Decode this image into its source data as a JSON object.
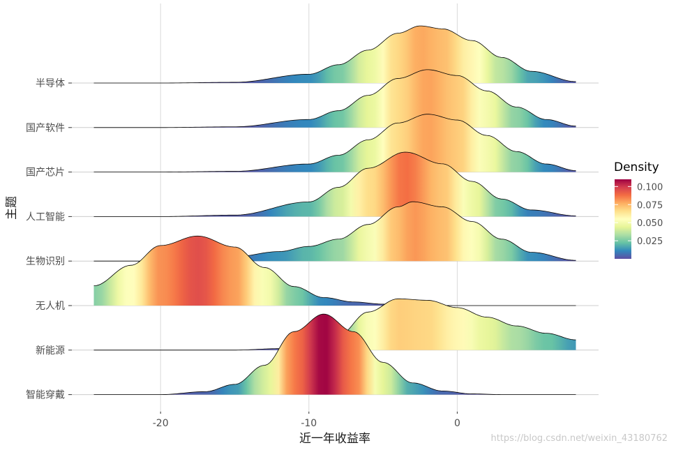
{
  "chart_data": {
    "type": "ridgeline",
    "xlabel": "近一年收益率",
    "ylabel": "主题",
    "xlim": [
      -24.5,
      8
    ],
    "x_ticks": [
      -20,
      -10,
      0
    ],
    "x_tick_labels": [
      "-20",
      "-10",
      "0"
    ],
    "grid": true,
    "categories": [
      "半导体",
      "国产软件",
      "国产芯片",
      "人工智能",
      "生物识别",
      "无人机",
      "新能源",
      "智能穿戴"
    ],
    "series": [
      {
        "name": "半导体",
        "peak_x": -2.5,
        "peak_density": 0.078,
        "x": [
          -24.5,
          -20,
          -15,
          -10,
          -8,
          -6,
          -4,
          -2.5,
          -1,
          1,
          3,
          5,
          8
        ],
        "density": [
          0.0,
          0.0,
          0.001,
          0.012,
          0.025,
          0.045,
          0.068,
          0.078,
          0.074,
          0.058,
          0.035,
          0.016,
          0.002
        ]
      },
      {
        "name": "国产软件",
        "peak_x": -2.0,
        "peak_density": 0.079,
        "x": [
          -24.5,
          -20,
          -15,
          -10,
          -8,
          -6,
          -4,
          -2,
          0,
          2,
          4,
          6,
          8
        ],
        "density": [
          0.0,
          0.0,
          0.001,
          0.011,
          0.023,
          0.044,
          0.067,
          0.079,
          0.071,
          0.05,
          0.028,
          0.011,
          0.002
        ]
      },
      {
        "name": "国产芯片",
        "peak_x": -2.0,
        "peak_density": 0.079,
        "x": [
          -24.5,
          -20,
          -15,
          -10,
          -8,
          -6,
          -4,
          -2,
          0,
          2,
          4,
          6,
          8
        ],
        "density": [
          0.0,
          0.0,
          0.001,
          0.011,
          0.023,
          0.044,
          0.067,
          0.079,
          0.071,
          0.05,
          0.028,
          0.011,
          0.002
        ]
      },
      {
        "name": "人工智能",
        "peak_x": -3.5,
        "peak_density": 0.088,
        "x": [
          -24.5,
          -20,
          -15,
          -10,
          -8,
          -6,
          -3.5,
          -1,
          1,
          3,
          5,
          8
        ],
        "density": [
          0.0,
          0.0,
          0.002,
          0.02,
          0.04,
          0.066,
          0.088,
          0.072,
          0.048,
          0.024,
          0.009,
          0.001
        ]
      },
      {
        "name": "生物识别",
        "peak_x": -3.0,
        "peak_density": 0.081,
        "x": [
          -24.5,
          -20,
          -18,
          -15,
          -12,
          -10,
          -8,
          -6,
          -4,
          -3,
          -1,
          1,
          3,
          5,
          8
        ],
        "density": [
          0.0,
          0.0,
          0.001,
          0.006,
          0.013,
          0.02,
          0.03,
          0.05,
          0.074,
          0.081,
          0.074,
          0.054,
          0.03,
          0.012,
          0.001
        ]
      },
      {
        "name": "无人机",
        "peak_x": -17.5,
        "peak_density": 0.095,
        "x": [
          -24.5,
          -22,
          -20,
          -17.5,
          -15,
          -13,
          -11,
          -9,
          -7,
          -5,
          -3,
          0,
          4,
          8
        ],
        "density": [
          0.027,
          0.055,
          0.082,
          0.095,
          0.08,
          0.052,
          0.026,
          0.011,
          0.005,
          0.002,
          0.001,
          0.0,
          0.0,
          0.0
        ]
      },
      {
        "name": "新能源",
        "peak_x": -4.0,
        "peak_density": 0.07,
        "x": [
          -24.5,
          -15,
          -12,
          -10,
          -8,
          -6,
          -4,
          -2,
          0,
          2,
          4,
          6,
          8
        ],
        "density": [
          0.0,
          0.0,
          0.002,
          0.006,
          0.02,
          0.052,
          0.07,
          0.068,
          0.058,
          0.045,
          0.033,
          0.023,
          0.014
        ]
      },
      {
        "name": "智能穿戴",
        "peak_x": -9.0,
        "peak_density": 0.11,
        "x": [
          -24.5,
          -20,
          -17,
          -15,
          -13,
          -11,
          -9,
          -7,
          -5,
          -3,
          -1,
          1,
          3,
          5,
          8
        ],
        "density": [
          0.0,
          0.0,
          0.004,
          0.014,
          0.04,
          0.086,
          0.11,
          0.086,
          0.044,
          0.016,
          0.005,
          0.001,
          0.0,
          0.0,
          0.0
        ]
      }
    ],
    "legend": {
      "title": "Density",
      "position": "right",
      "ticks": [
        0.025,
        0.05,
        0.075,
        0.1
      ],
      "tick_labels": [
        "0.025",
        "0.050",
        "0.075",
        "0.100"
      ],
      "range": [
        0.0,
        0.11
      ],
      "palette": [
        "#5E4FA2",
        "#3288BD",
        "#66C2A5",
        "#ABDDA4",
        "#E6F598",
        "#FFFFBF",
        "#FEE08B",
        "#FDAE61",
        "#F46D43",
        "#D53E4F",
        "#9E0142"
      ]
    }
  },
  "watermark": "https://blog.csdn.net/weixin_43180762"
}
